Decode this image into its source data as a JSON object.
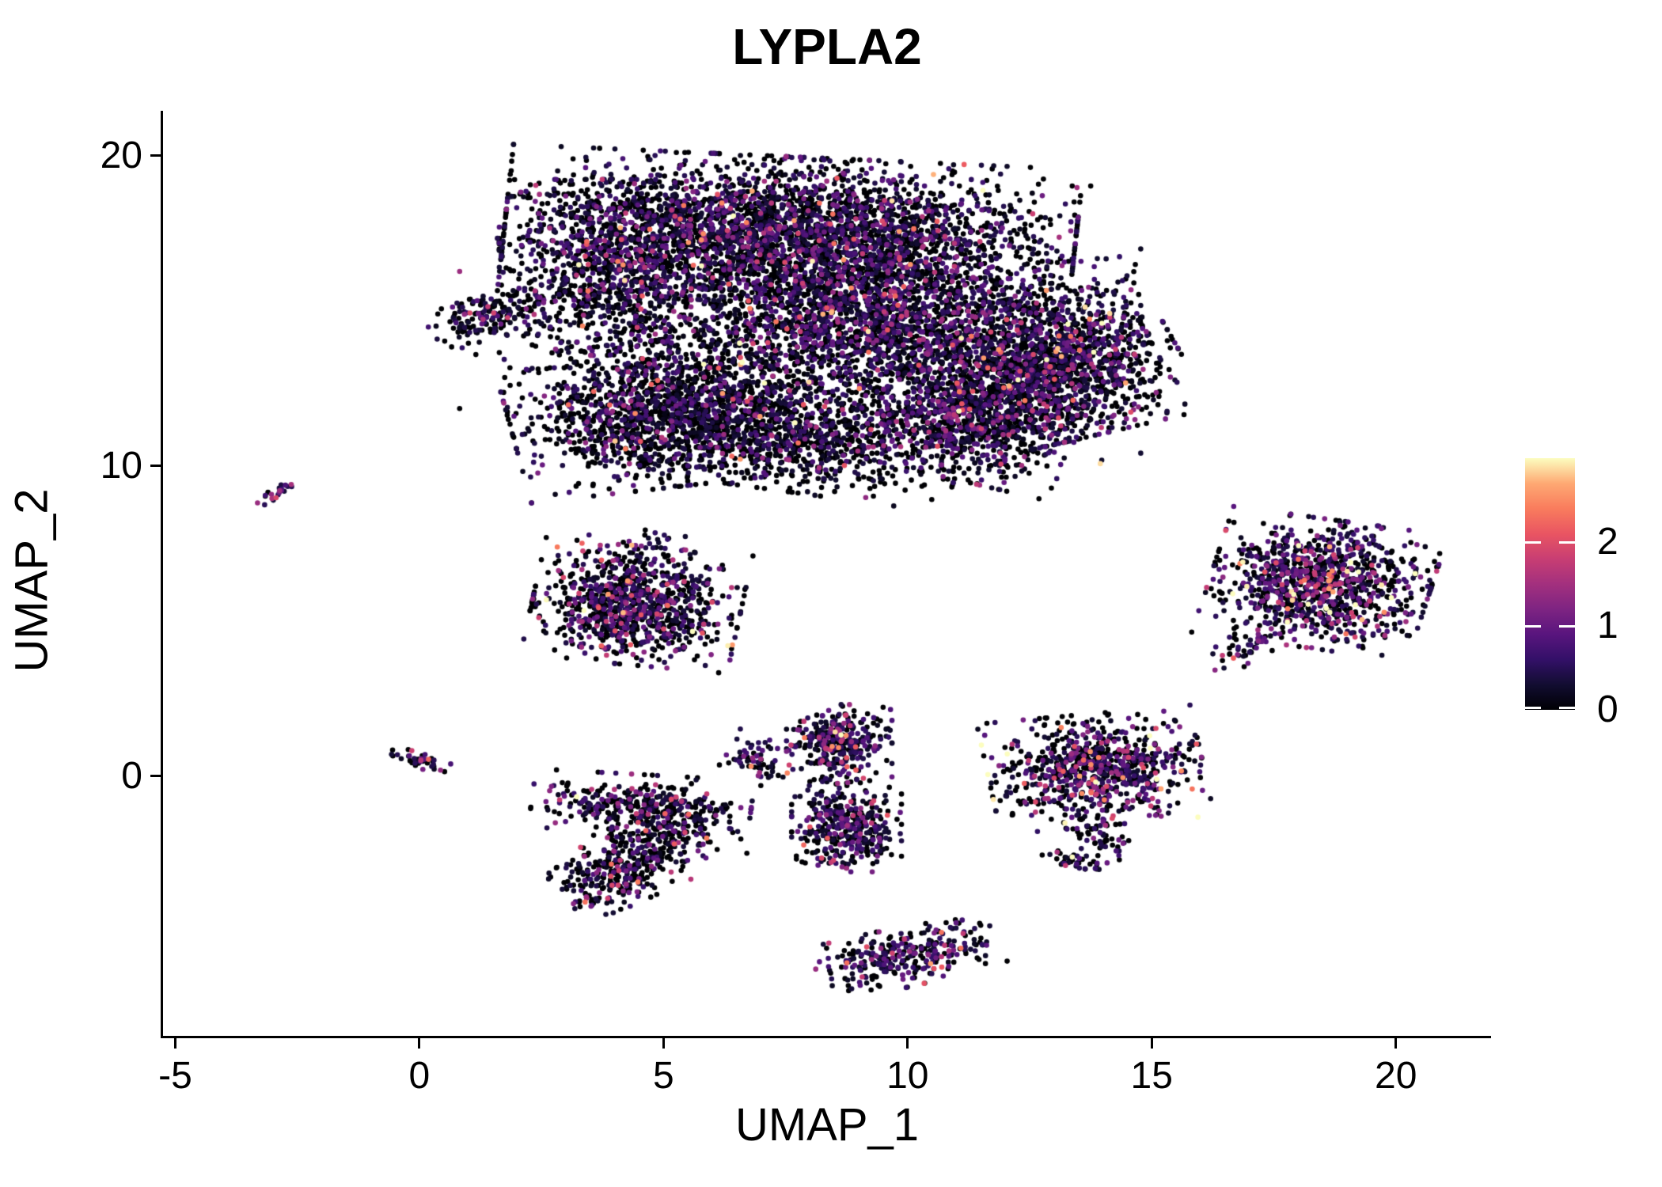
{
  "chart_data": {
    "type": "scatter",
    "title": "LYPLA2",
    "xlabel": "UMAP_1",
    "ylabel": "UMAP_2",
    "x_ticks": [
      -5,
      0,
      5,
      10,
      15,
      20
    ],
    "y_ticks": [
      0,
      10,
      20
    ],
    "xlim": [
      -5.25,
      21.95
    ],
    "ylim": [
      -8.4,
      21.4
    ],
    "grid": false,
    "point_radius_px": 3.3,
    "colorbar": {
      "position": "right",
      "ticks": [
        0,
        1,
        2
      ],
      "range": [
        0,
        3
      ],
      "palette": "magma",
      "stops": [
        [
          0.0,
          "#000004"
        ],
        [
          0.1,
          "#120d31"
        ],
        [
          0.2,
          "#331068"
        ],
        [
          0.3,
          "#59157e"
        ],
        [
          0.4,
          "#7e2482"
        ],
        [
          0.5,
          "#a3307e"
        ],
        [
          0.6,
          "#c83e73"
        ],
        [
          0.7,
          "#e95562"
        ],
        [
          0.8,
          "#f97c5d"
        ],
        [
          0.9,
          "#fea973"
        ],
        [
          1.0,
          "#fcfdbf"
        ]
      ],
      "tick_color": "#ffffff"
    },
    "clusters": [
      {
        "name": "main-upper",
        "n": 2800,
        "cx": 7.6,
        "cy": 17.6,
        "sx": 2.6,
        "sy": 1.05,
        "rot": -4,
        "zero": 0.46,
        "base": 0.12,
        "mean": 0.5
      },
      {
        "name": "main-upper-left",
        "n": 900,
        "cx": 4.0,
        "cy": 16.2,
        "sx": 1.05,
        "sy": 1.35,
        "rot": 0,
        "zero": 0.46,
        "base": 0.12,
        "mean": 0.5
      },
      {
        "name": "main-mid",
        "n": 2300,
        "cx": 9.4,
        "cy": 14.6,
        "sx": 2.2,
        "sy": 1.25,
        "rot": -8,
        "zero": 0.46,
        "base": 0.12,
        "mean": 0.5
      },
      {
        "name": "main-right-lobe",
        "n": 1400,
        "cx": 13.0,
        "cy": 13.2,
        "sx": 1.15,
        "sy": 1.05,
        "rot": 20,
        "zero": 0.44,
        "base": 0.12,
        "mean": 0.5
      },
      {
        "name": "main-lower-left",
        "n": 1500,
        "cx": 5.1,
        "cy": 11.7,
        "sx": 1.45,
        "sy": 1.05,
        "rot": 10,
        "zero": 0.56,
        "base": 0.1,
        "mean": 0.45
      },
      {
        "name": "main-left-wedge",
        "n": 160,
        "cx": 1.4,
        "cy": 14.8,
        "sx": 0.55,
        "sy": 0.3,
        "rot": 25,
        "zero": 0.5,
        "base": 0.1,
        "mean": 0.45
      },
      {
        "name": "main-lower-bridge",
        "n": 700,
        "cx": 8.0,
        "cy": 10.8,
        "sx": 1.4,
        "sy": 0.75,
        "rot": -12,
        "zero": 0.58,
        "base": 0.1,
        "mean": 0.45
      },
      {
        "name": "main-lower-right",
        "n": 800,
        "cx": 11.2,
        "cy": 11.4,
        "sx": 1.05,
        "sy": 0.8,
        "rot": -20,
        "zero": 0.5,
        "base": 0.12,
        "mean": 0.5
      },
      {
        "name": "main-sparse-fill",
        "n": 700,
        "cx": 7.8,
        "cy": 14.3,
        "sx": 3.1,
        "sy": 2.1,
        "rot": 0,
        "zero": 0.55,
        "base": 0.1,
        "mean": 0.45
      },
      {
        "name": "mid-left",
        "n": 950,
        "cx": 4.45,
        "cy": 5.5,
        "sx": 0.95,
        "sy": 0.85,
        "rot": -8,
        "zero": 0.46,
        "base": 0.15,
        "mean": 0.55
      },
      {
        "name": "mid-left-top",
        "n": 30,
        "cx": 4.4,
        "cy": 7.4,
        "sx": 0.7,
        "sy": 0.25,
        "rot": 0,
        "zero": 0.5,
        "base": 0.1,
        "mean": 0.5
      },
      {
        "name": "right",
        "n": 1050,
        "cx": 18.45,
        "cy": 6.2,
        "sx": 1.0,
        "sy": 0.92,
        "rot": -12,
        "zero": 0.4,
        "base": 0.15,
        "mean": 0.65
      },
      {
        "name": "right-tail",
        "n": 40,
        "cx": 16.9,
        "cy": 4.1,
        "sx": 0.4,
        "sy": 0.22,
        "rot": 40,
        "zero": 0.4,
        "base": 0.15,
        "mean": 0.6
      },
      {
        "name": "left-streak",
        "n": 22,
        "cx": -2.9,
        "cy": 9.15,
        "sx": 0.26,
        "sy": 0.09,
        "rot": 42,
        "zero": 0.2,
        "base": 0.3,
        "mean": 0.8
      },
      {
        "name": "tiny-zero",
        "n": 42,
        "cx": 0.0,
        "cy": 0.5,
        "sx": 0.32,
        "sy": 0.1,
        "rot": -25,
        "zero": 0.3,
        "base": 0.2,
        "mean": 0.6
      },
      {
        "name": "lower-mid-top",
        "n": 330,
        "cx": 4.55,
        "cy": -0.9,
        "sx": 1.0,
        "sy": 0.42,
        "rot": -5,
        "zero": 0.52,
        "base": 0.12,
        "mean": 0.55
      },
      {
        "name": "lower-mid-mid",
        "n": 260,
        "cx": 4.9,
        "cy": -2.0,
        "sx": 0.72,
        "sy": 0.5,
        "rot": 15,
        "zero": 0.52,
        "base": 0.12,
        "mean": 0.55
      },
      {
        "name": "lower-mid-lobe",
        "n": 230,
        "cx": 3.95,
        "cy": -3.3,
        "sx": 0.58,
        "sy": 0.42,
        "rot": 35,
        "zero": 0.52,
        "base": 0.12,
        "mean": 0.55
      },
      {
        "name": "small-crescent",
        "n": 70,
        "cx": 6.95,
        "cy": 0.55,
        "sx": 0.36,
        "sy": 0.32,
        "rot": -30,
        "zero": 0.38,
        "base": 0.15,
        "mean": 0.65
      },
      {
        "name": "vertical-top",
        "n": 330,
        "cx": 8.6,
        "cy": 1.0,
        "sx": 0.48,
        "sy": 0.58,
        "rot": 0,
        "zero": 0.35,
        "base": 0.15,
        "mean": 0.5
      },
      {
        "name": "vertical-bottom",
        "n": 380,
        "cx": 8.75,
        "cy": -1.6,
        "sx": 0.5,
        "sy": 0.66,
        "rot": 0,
        "zero": 0.35,
        "base": 0.15,
        "mean": 0.5
      },
      {
        "name": "right-mid",
        "n": 800,
        "cx": 13.85,
        "cy": 0.2,
        "sx": 0.98,
        "sy": 0.8,
        "rot": 8,
        "zero": 0.42,
        "base": 0.15,
        "mean": 0.65
      },
      {
        "name": "right-mid-tail",
        "n": 60,
        "cx": 13.9,
        "cy": -1.9,
        "sx": 0.22,
        "sy": 0.45,
        "rot": 25,
        "zero": 0.45,
        "base": 0.12,
        "mean": 0.5
      },
      {
        "name": "right-mid-tail-end",
        "n": 40,
        "cx": 13.4,
        "cy": -2.75,
        "sx": 0.3,
        "sy": 0.13,
        "rot": -15,
        "zero": 0.45,
        "base": 0.12,
        "mean": 0.5
      },
      {
        "name": "bottom-streak",
        "n": 300,
        "cx": 10.0,
        "cy": -5.8,
        "sx": 0.85,
        "sy": 0.42,
        "rot": 20,
        "zero": 0.35,
        "base": 0.15,
        "mean": 0.5
      }
    ]
  }
}
